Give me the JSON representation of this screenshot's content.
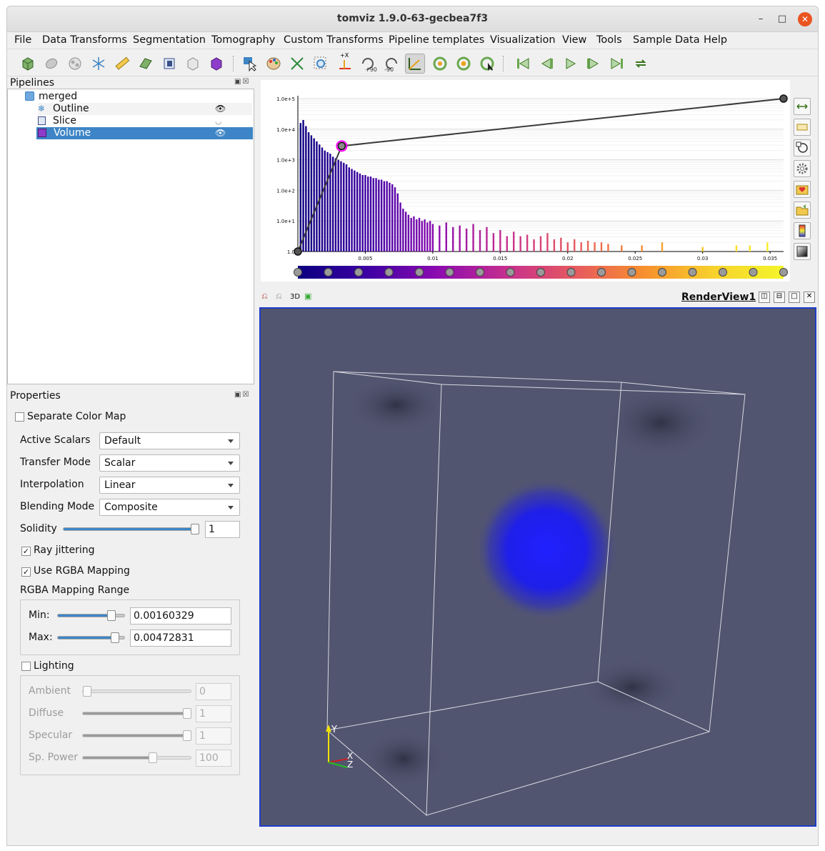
{
  "window": {
    "title": "tomviz 1.9.0-63-gecbea7f3"
  },
  "menu": [
    {
      "label": "File"
    },
    {
      "label": "Data Transforms"
    },
    {
      "label": "Segmentation"
    },
    {
      "label": "Tomography"
    },
    {
      "label": "Custom Transforms"
    },
    {
      "label": "Pipeline templates"
    },
    {
      "label": "Visualization"
    },
    {
      "label": "View"
    },
    {
      "label": "Tools"
    },
    {
      "label": "Sample Data"
    },
    {
      "label": "Help"
    }
  ],
  "toolbar": {
    "rotate_plus_label": "+90",
    "rotate_minus_label": "-90",
    "xyz_label": "+X"
  },
  "pipelines": {
    "title": "Pipelines",
    "root": "merged",
    "children": [
      {
        "label": "Outline",
        "visible": true
      },
      {
        "label": "Slice",
        "visible": false
      },
      {
        "label": "Volume",
        "visible": true,
        "selected": true
      }
    ]
  },
  "properties": {
    "title": "Properties",
    "separate_color_map": {
      "label": "Separate Color Map",
      "checked": false
    },
    "active_scalars": {
      "label": "Active Scalars",
      "value": "Default"
    },
    "transfer_mode": {
      "label": "Transfer Mode",
      "value": "Scalar"
    },
    "interpolation": {
      "label": "Interpolation",
      "value": "Linear"
    },
    "blending_mode": {
      "label": "Blending Mode",
      "value": "Composite"
    },
    "solidity": {
      "label": "Solidity",
      "value": "1",
      "fraction": 1.0
    },
    "ray_jittering": {
      "label": "Ray jittering",
      "checked": true
    },
    "use_rgba": {
      "label": "Use RGBA Mapping",
      "checked": true
    },
    "rgba_range": {
      "label": "RGBA Mapping Range",
      "min_label": "Min:",
      "min_value": "0.00160329",
      "min_fraction": 0.78,
      "max_label": "Max:",
      "max_value": "0.00472831",
      "max_fraction": 0.84
    },
    "lighting": {
      "label": "Lighting",
      "checked": false
    },
    "ambient": {
      "label": "Ambient",
      "value": "0",
      "fraction": 0.0
    },
    "diffuse": {
      "label": "Diffuse",
      "value": "1",
      "fraction": 1.0
    },
    "specular": {
      "label": "Specular",
      "value": "1",
      "fraction": 1.0
    },
    "sp_power": {
      "label": "Sp. Power",
      "value": "100",
      "fraction": 0.66
    }
  },
  "render_view": {
    "title": "RenderView1",
    "mode_label": "3D",
    "axes": {
      "y": "Y",
      "x": "X",
      "z": "Z"
    },
    "background_color": "#525570",
    "blob_color": "#1f1fff"
  },
  "chart_data": {
    "type": "bar",
    "title": "",
    "xlabel": "",
    "ylabel": "",
    "y_scale": "log",
    "y_tick_labels": [
      "1.0",
      "1.0e+1",
      "1.0e+2",
      "1.0e+3",
      "1.0e+4",
      "1.0e+5"
    ],
    "x_tick_labels": [
      "0.005",
      "0.01",
      "0.015",
      "0.02",
      "0.025",
      "0.03",
      "0.035"
    ],
    "xlim": [
      0,
      0.036
    ],
    "ylim_log10": [
      0,
      5
    ],
    "histogram_log10": [
      [
        0.0002,
        4.2
      ],
      [
        0.0004,
        4.3
      ],
      [
        0.0006,
        4.1
      ],
      [
        0.0008,
        3.9
      ],
      [
        0.001,
        3.8
      ],
      [
        0.0012,
        3.7
      ],
      [
        0.0014,
        3.6
      ],
      [
        0.0016,
        3.5
      ],
      [
        0.0018,
        3.4
      ],
      [
        0.002,
        3.3
      ],
      [
        0.0022,
        3.25
      ],
      [
        0.0024,
        3.2
      ],
      [
        0.0026,
        3.1
      ],
      [
        0.0028,
        3.05
      ],
      [
        0.003,
        3.0
      ],
      [
        0.0032,
        2.95
      ],
      [
        0.0034,
        2.9
      ],
      [
        0.0036,
        2.85
      ],
      [
        0.0038,
        2.75
      ],
      [
        0.004,
        2.7
      ],
      [
        0.0042,
        2.65
      ],
      [
        0.0044,
        2.6
      ],
      [
        0.0046,
        2.55
      ],
      [
        0.0048,
        2.5
      ],
      [
        0.005,
        2.5
      ],
      [
        0.0052,
        2.45
      ],
      [
        0.0054,
        2.45
      ],
      [
        0.0056,
        2.4
      ],
      [
        0.0058,
        2.4
      ],
      [
        0.006,
        2.35
      ],
      [
        0.0062,
        2.35
      ],
      [
        0.0064,
        2.3
      ],
      [
        0.0066,
        2.3
      ],
      [
        0.0068,
        2.25
      ],
      [
        0.007,
        2.2
      ],
      [
        0.0072,
        2.1
      ],
      [
        0.0074,
        1.9
      ],
      [
        0.0076,
        1.6
      ],
      [
        0.0078,
        1.4
      ],
      [
        0.008,
        1.3
      ],
      [
        0.0082,
        1.2
      ],
      [
        0.0084,
        1.1
      ],
      [
        0.0086,
        1.15
      ],
      [
        0.0088,
        1.05
      ],
      [
        0.009,
        1.1
      ],
      [
        0.0092,
        1.0
      ],
      [
        0.0094,
        1.05
      ],
      [
        0.0096,
        0.95
      ],
      [
        0.0098,
        1.0
      ],
      [
        0.01,
        0.9
      ],
      [
        0.0105,
        0.85
      ],
      [
        0.011,
        0.95
      ],
      [
        0.0115,
        0.8
      ],
      [
        0.012,
        0.85
      ],
      [
        0.0125,
        0.75
      ],
      [
        0.013,
        0.9
      ],
      [
        0.0135,
        0.7
      ],
      [
        0.014,
        0.8
      ],
      [
        0.0145,
        0.6
      ],
      [
        0.015,
        0.7
      ],
      [
        0.0155,
        0.5
      ],
      [
        0.016,
        0.65
      ],
      [
        0.0165,
        0.5
      ],
      [
        0.017,
        0.55
      ],
      [
        0.0175,
        0.4
      ],
      [
        0.018,
        0.5
      ],
      [
        0.0185,
        0.6
      ],
      [
        0.019,
        0.4
      ],
      [
        0.0195,
        0.45
      ],
      [
        0.02,
        0.3
      ],
      [
        0.0205,
        0.4
      ],
      [
        0.021,
        0.3
      ],
      [
        0.0215,
        0.35
      ],
      [
        0.022,
        0.3
      ],
      [
        0.0225,
        0.3
      ],
      [
        0.023,
        0.25
      ],
      [
        0.024,
        0.2
      ],
      [
        0.0255,
        0.2
      ],
      [
        0.027,
        0.3
      ],
      [
        0.03,
        0.15
      ],
      [
        0.0325,
        0.2
      ],
      [
        0.0335,
        0.2
      ],
      [
        0.0348,
        0.3
      ]
    ],
    "opacity_curve": [
      [
        0,
        0
      ],
      [
        0.00325,
        0.69
      ],
      [
        0.036,
        1.0
      ]
    ],
    "colormap": [
      "#0b0080",
      "#3d00a3",
      "#8b0bb0",
      "#c52f8e",
      "#e65a5f",
      "#f7902e",
      "#f7d22c",
      "#f4f52a"
    ],
    "color_nodes_count": 17
  }
}
